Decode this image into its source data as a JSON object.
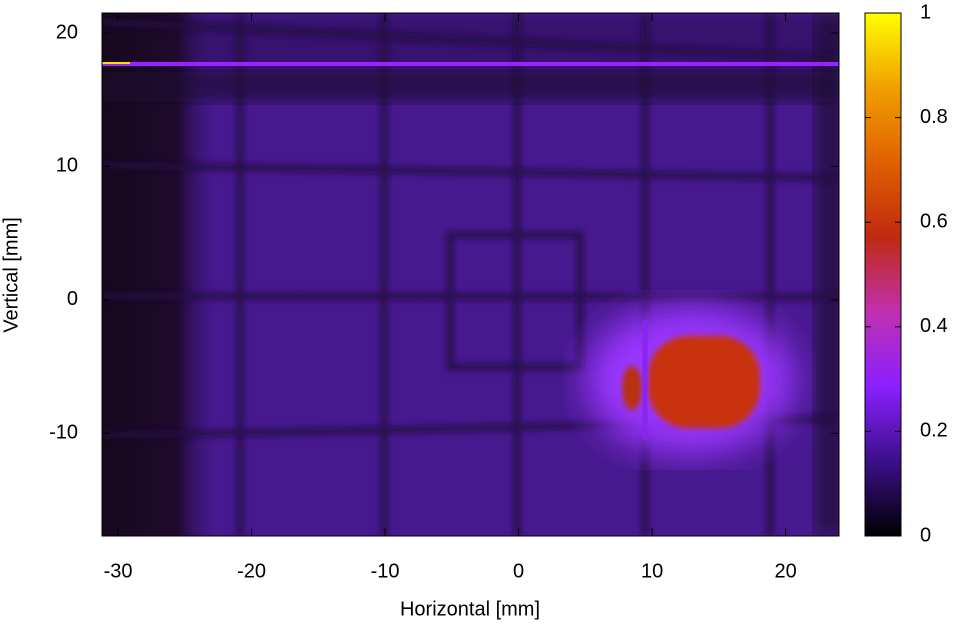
{
  "chart_data": {
    "type": "heatmap",
    "xlabel": "Horizontal [mm]",
    "ylabel": "Vertical [mm]",
    "xlim": [
      -31.2,
      24
    ],
    "xticks": [
      -30,
      -20,
      -10,
      0,
      10,
      20
    ],
    "ylim": [
      -17.7,
      21.5
    ],
    "yticks": [
      -10,
      0,
      10,
      20
    ],
    "clim": [
      0,
      1
    ],
    "cticks": [
      0,
      0.2,
      0.4,
      0.6,
      0.8,
      1
    ],
    "colormap": [
      "#000000",
      "#3c0f8a",
      "#8a20ff",
      "#c030b0",
      "#c02a10",
      "#e06000",
      "#f0a000",
      "#ffff00"
    ]
  }
}
